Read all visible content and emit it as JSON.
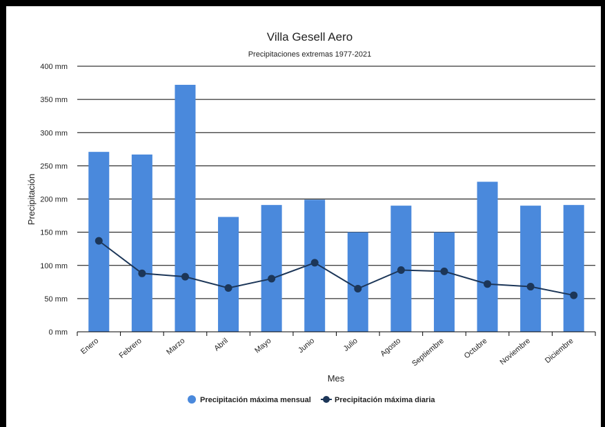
{
  "chart_data": {
    "type": "bar",
    "title": "Villa Gesell Aero",
    "subtitle": "Precipitaciones extremas 1977-2021",
    "xlabel": "Mes",
    "ylabel": "Precipitación",
    "categories": [
      "Enero",
      "Febrero",
      "Marzo",
      "Abril",
      "Mayo",
      "Junio",
      "Julio",
      "Agosto",
      "Septiembre",
      "Octubre",
      "Noviembre",
      "Diciembre"
    ],
    "ylim": [
      0,
      400
    ],
    "yticks": [
      0,
      50,
      100,
      150,
      200,
      250,
      300,
      350,
      400
    ],
    "ytick_labels": [
      "0 mm",
      "50 mm",
      "100 mm",
      "150 mm",
      "200 mm",
      "250 mm",
      "300 mm",
      "350 mm",
      "400 mm"
    ],
    "grid": true,
    "legend_position": "bottom",
    "series": [
      {
        "name": "Precipitación máxima mensual",
        "type": "bar",
        "color": "#4a89dc",
        "values": [
          271,
          267,
          372,
          173,
          191,
          199,
          150,
          190,
          150,
          226,
          190,
          191
        ]
      },
      {
        "name": "Precipitación máxima diaria",
        "type": "line",
        "color": "#1c3658",
        "values": [
          137,
          88,
          83,
          66,
          80,
          104,
          65,
          93,
          91,
          72,
          68,
          55
        ]
      }
    ]
  }
}
